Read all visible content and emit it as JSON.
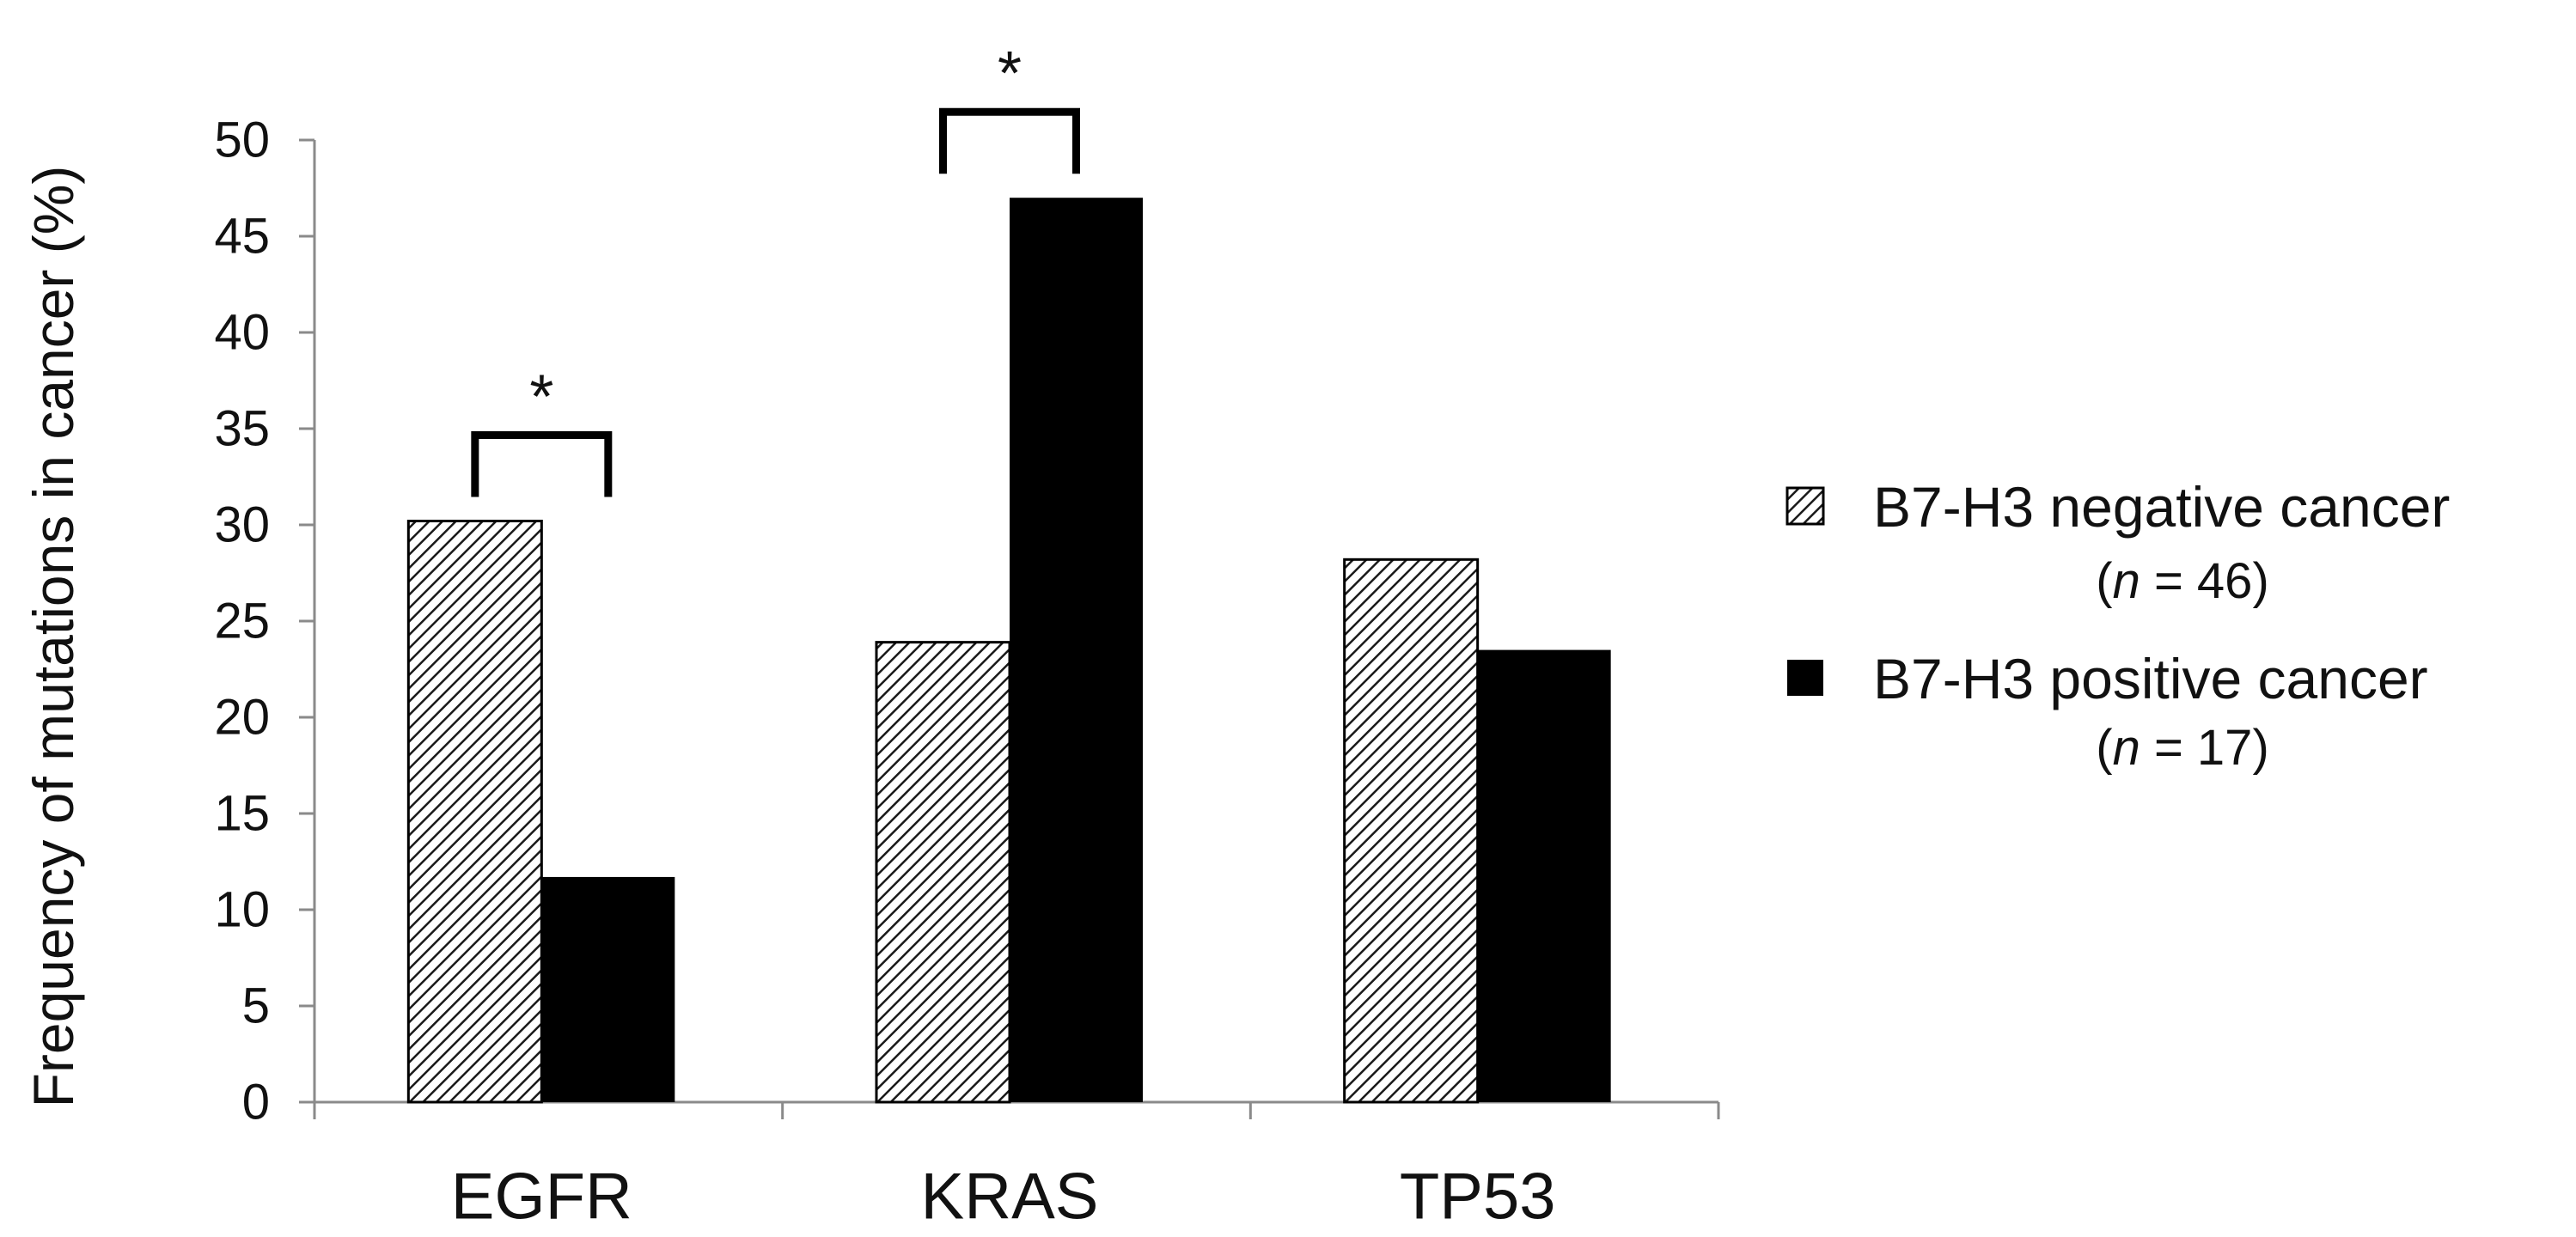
{
  "chart_data": {
    "type": "bar",
    "title": "",
    "xlabel": "",
    "ylabel": "Frequency of mutations in cancer (%)",
    "categories": [
      "EGFR",
      "KRAS",
      "TP53"
    ],
    "ylim": [
      0,
      50
    ],
    "yticks": [
      0,
      5,
      10,
      15,
      20,
      25,
      30,
      35,
      40,
      45,
      50
    ],
    "series": [
      {
        "name": "B7-H3 negative cancer",
        "sample_size": "(n = 46)",
        "n_letter": "n",
        "n_rest": " = 46)",
        "pattern": "hatched",
        "values": [
          30.2,
          23.9,
          28.2
        ]
      },
      {
        "name": "B7-H3 positive cancer",
        "sample_size": "(n = 17)",
        "n_letter": "n",
        "n_rest": " = 17)",
        "pattern": "solid",
        "values": [
          11.7,
          47.0,
          23.5
        ]
      }
    ],
    "significance": [
      {
        "category": "EGFR",
        "label": "*"
      },
      {
        "category": "KRAS",
        "label": "*"
      }
    ],
    "legend_position": "right",
    "grid": false
  },
  "colors": {
    "axis": "#8a8a8a",
    "bar_solid": "#000000",
    "hatch_line": "#1a1a1a",
    "hatch_bg": "#ffffff",
    "text": "#111111"
  }
}
